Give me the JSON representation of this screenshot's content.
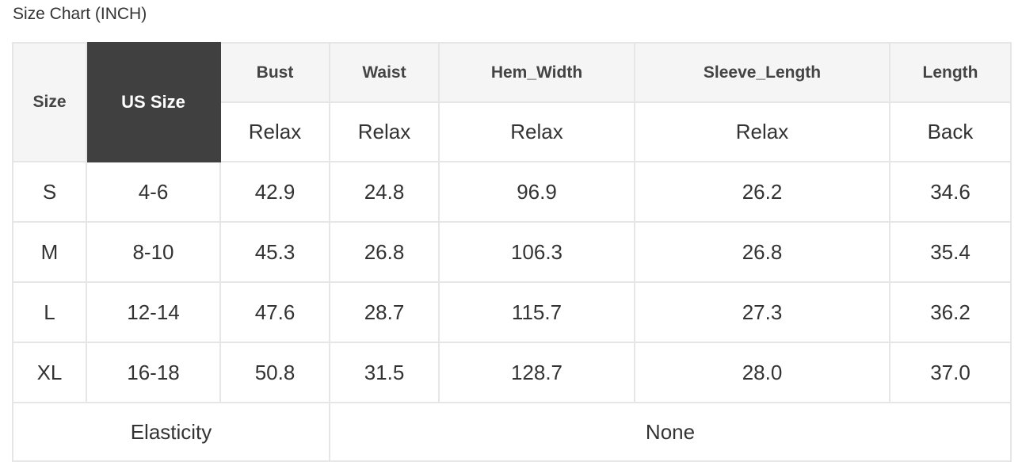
{
  "title": "Size Chart (INCH)",
  "header": {
    "size": "Size",
    "us_size": "US Size",
    "columns": [
      "Bust",
      "Waist",
      "Hem_Width",
      "Sleeve_Length",
      "Length"
    ],
    "subheaders": [
      "Relax",
      "Relax",
      "Relax",
      "Relax",
      "Back"
    ]
  },
  "rows": [
    [
      "S",
      "4-6",
      "42.9",
      "24.8",
      "96.9",
      "26.2",
      "34.6"
    ],
    [
      "M",
      "8-10",
      "45.3",
      "26.8",
      "106.3",
      "26.8",
      "35.4"
    ],
    [
      "L",
      "12-14",
      "47.6",
      "28.7",
      "115.7",
      "27.3",
      "36.2"
    ],
    [
      "XL",
      "16-18",
      "50.8",
      "31.5",
      "128.7",
      "28.0",
      "37.0"
    ]
  ],
  "footer": {
    "label": "Elasticity",
    "value": "None"
  },
  "colors": {
    "us_size_bg": "#404040",
    "header_bg": "#f5f5f5",
    "border": "#e6e6e6"
  }
}
